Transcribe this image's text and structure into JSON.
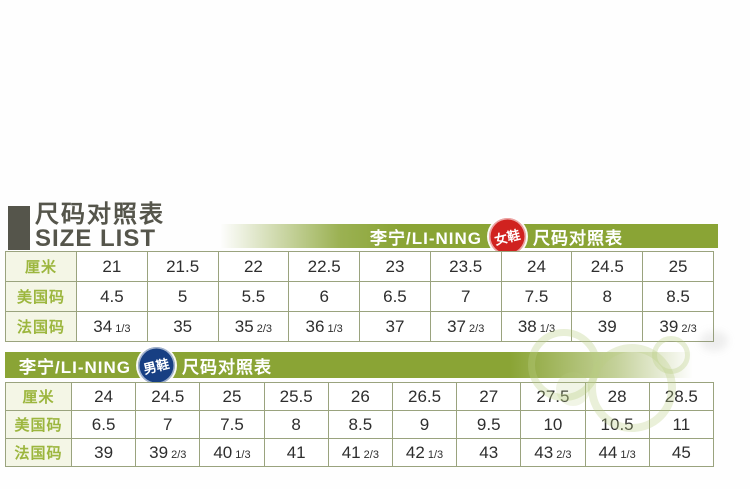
{
  "title": {
    "line1": "尺码对照表",
    "line2": "SIZE LIST"
  },
  "women": {
    "banner": {
      "brand": "李宁/LI-NING",
      "badge": "女鞋",
      "label": "尺码对照表"
    },
    "rows": [
      {
        "header": "厘米",
        "cells": [
          "21",
          "21.5",
          "22",
          "22.5",
          "23",
          "23.5",
          "24",
          "24.5",
          "25"
        ]
      },
      {
        "header": "美国码",
        "cells": [
          "4.5",
          "5",
          "5.5",
          "6",
          "6.5",
          "7",
          "7.5",
          "8",
          "8.5"
        ]
      },
      {
        "header": "法国码",
        "cells": [
          "34 1/3",
          "35",
          "35 2/3",
          "36 1/3",
          "37",
          "37 2/3",
          "38 1/3",
          "39",
          "39 2/3"
        ]
      }
    ]
  },
  "men": {
    "banner": {
      "brand": "李宁/LI-NING",
      "badge": "男鞋",
      "label": "尺码对照表"
    },
    "rows": [
      {
        "header": "厘米",
        "cells": [
          "24",
          "24.5",
          "25",
          "25.5",
          "26",
          "26.5",
          "27",
          "27.5",
          "28",
          "28.5"
        ]
      },
      {
        "header": "美国码",
        "cells": [
          "6.5",
          "7",
          "7.5",
          "8",
          "8.5",
          "9",
          "9.5",
          "10",
          "10.5",
          "11"
        ]
      },
      {
        "header": "法国码",
        "cells": [
          "39",
          "39 2/3",
          "40 1/3",
          "41",
          "41 2/3",
          "42 1/3",
          "43",
          "43 2/3",
          "44 1/3",
          "45"
        ]
      }
    ]
  },
  "colors": {
    "banner_green": "#8aa435",
    "badge_red": "#d0221f",
    "badge_blue": "#173f83",
    "title_gray": "#55554b",
    "header_text_green": "#9cb63e",
    "header_bg": "#f4f6e6",
    "border_olive": "#9aa37e",
    "cell_text": "#2e2e2e"
  }
}
